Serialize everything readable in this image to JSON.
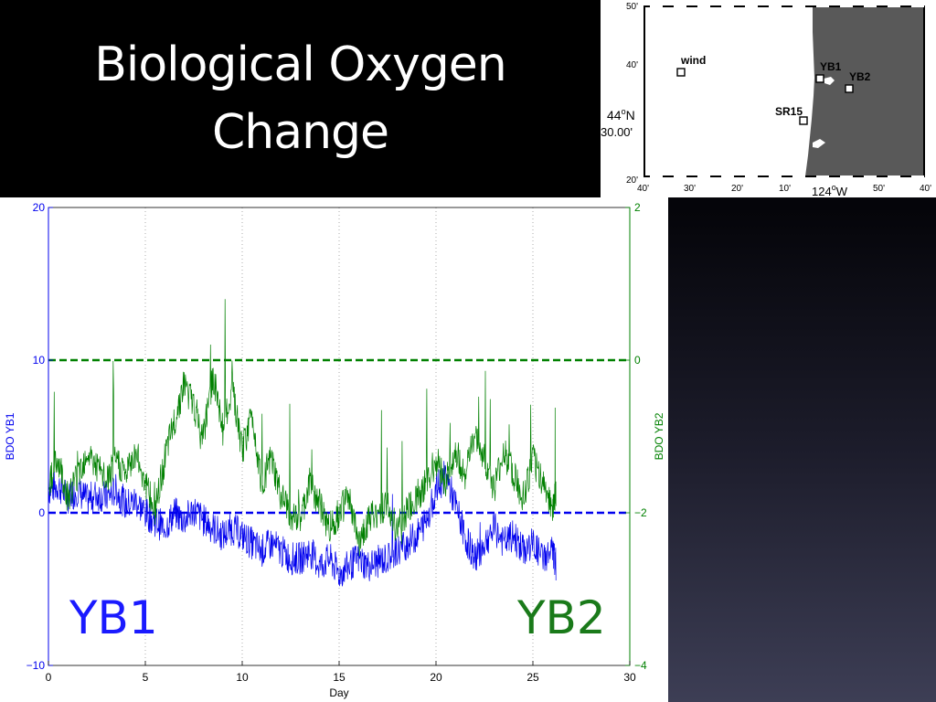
{
  "slide": {
    "title_line1": "Biological Oxygen",
    "title_line2": "Change"
  },
  "map": {
    "top_left_label": "50'",
    "left_labels": [
      "40'",
      "44",
      "N",
      "30.00'",
      "20'"
    ],
    "lat_deg": "44",
    "lat_sup": "o",
    "lat_hemi": "N",
    "lat_min": "30.00'",
    "left_40": "40'",
    "left_20": "20'",
    "bottom_labels": [
      "40'",
      "30'",
      "20'",
      "10'",
      "124",
      "50'",
      "40'"
    ],
    "lon_deg": "124",
    "lon_sup": "o",
    "lon_hemi": "W",
    "stations": [
      {
        "name": "wind"
      },
      {
        "name": "YB1"
      },
      {
        "name": "YB2"
      },
      {
        "name": "SR15"
      }
    ],
    "land_color": "#595959",
    "ocean_color": "#ffffff"
  },
  "big_labels": {
    "yb1": "YB1",
    "yb2": "YB2",
    "yb1_color": "#1a1aff",
    "yb2_color": "#1a7a1a"
  },
  "chart_data": {
    "type": "line",
    "xlabel": "Day",
    "ylabel_left": "BDO YB1",
    "ylabel_right": "BDO YB2",
    "xlim": [
      0,
      30
    ],
    "ylim_left": [
      -10,
      20
    ],
    "ylim_right": [
      -4,
      2
    ],
    "x_ticks": [
      0,
      5,
      10,
      15,
      20,
      25,
      30
    ],
    "y_ticks_left": [
      -10,
      0,
      10,
      20
    ],
    "y_ticks_right": [
      -4,
      -2,
      0,
      2
    ],
    "x_tick_labels": [
      "0",
      "5",
      "10",
      "15",
      "20",
      "25",
      "30"
    ],
    "y_tick_labels_left": [
      "−10",
      "0",
      "10",
      "20"
    ],
    "y_tick_labels_right": [
      "−4",
      "−2",
      "0",
      "2"
    ],
    "grid": "vertical dotted",
    "series": [
      {
        "name": "YB1",
        "axis": "left",
        "color": "#0000ee",
        "x": [
          0,
          0.5,
          1,
          1.5,
          2,
          2.5,
          3,
          3.5,
          4,
          4.5,
          5,
          5.5,
          6,
          6.5,
          7,
          7.5,
          8,
          8.5,
          9,
          9.5,
          10,
          10.5,
          11,
          11.5,
          12,
          12.5,
          13,
          13.5,
          14,
          14.5,
          15,
          15.5,
          16,
          16.5,
          17,
          17.5,
          18,
          18.5,
          19,
          19.5,
          20,
          20.5,
          21,
          21.5,
          22,
          22.5,
          23,
          23.5,
          24,
          24.5,
          25,
          25.5,
          26,
          26.2
        ],
        "values": [
          1.5,
          1.8,
          1.0,
          1.5,
          0.8,
          1.2,
          1.0,
          1.5,
          0.5,
          0.8,
          0.0,
          -0.5,
          -1.0,
          0.0,
          -0.5,
          0.2,
          -0.5,
          -1.0,
          -1.5,
          -1.0,
          -1.5,
          -2.0,
          -2.5,
          -2.0,
          -2.5,
          -3.0,
          -3.0,
          -2.5,
          -3.5,
          -3.0,
          -4.0,
          -3.5,
          -3.0,
          -3.5,
          -3.2,
          -3.0,
          -2.5,
          -2.0,
          -1.5,
          -0.5,
          1.5,
          2.5,
          0.5,
          -1.5,
          -3.0,
          -2.0,
          -1.0,
          -2.0,
          -1.5,
          -2.5,
          -2.0,
          -3.0,
          -2.5,
          -3.5
        ],
        "reference_line": 0
      },
      {
        "name": "YB2",
        "axis": "right",
        "color": "#008000",
        "x": [
          0,
          0.5,
          1,
          1.5,
          2,
          2.5,
          3,
          3.5,
          4,
          4.5,
          5,
          5.5,
          6,
          6.5,
          7,
          7.5,
          8,
          8.5,
          9,
          9.5,
          10,
          10.5,
          11,
          11.5,
          12,
          12.5,
          13,
          13.5,
          14,
          14.5,
          15,
          15.5,
          16,
          16.5,
          17,
          17.5,
          18,
          18.5,
          19,
          19.5,
          20,
          20.5,
          21,
          21.5,
          22,
          22.5,
          23,
          23.5,
          24,
          24.5,
          25,
          25.5,
          26,
          26.2
        ],
        "values": [
          -1.6,
          -1.3,
          -1.8,
          -1.5,
          -1.2,
          -1.4,
          -1.6,
          -1.3,
          -1.5,
          -1.2,
          -1.6,
          -2.0,
          -1.3,
          -0.8,
          -0.3,
          -0.6,
          -1.0,
          -0.2,
          -0.9,
          -0.4,
          -1.2,
          -0.7,
          -1.6,
          -1.3,
          -1.8,
          -2.0,
          -2.1,
          -1.6,
          -1.9,
          -2.2,
          -2.0,
          -1.8,
          -2.4,
          -2.1,
          -2.0,
          -1.9,
          -2.2,
          -2.0,
          -1.8,
          -1.6,
          -1.3,
          -1.6,
          -1.2,
          -1.5,
          -1.0,
          -1.3,
          -1.7,
          -1.2,
          -1.5,
          -1.8,
          -1.3,
          -1.6,
          -1.9,
          -1.8
        ],
        "reference_line": 0
      }
    ]
  }
}
